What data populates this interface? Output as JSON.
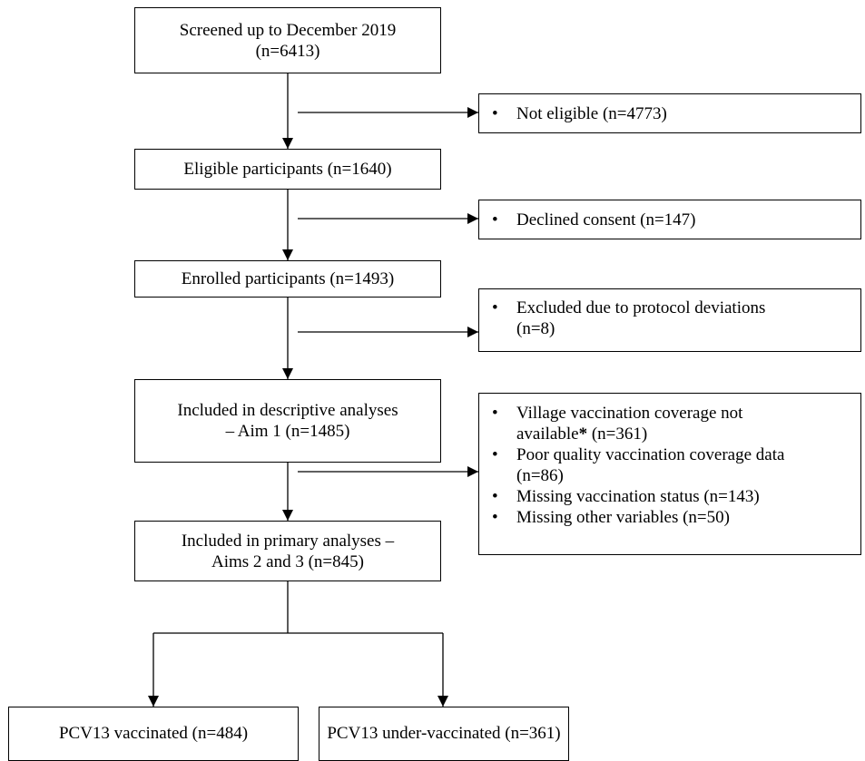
{
  "flow": {
    "screened": {
      "line1": "Screened up to December 2019",
      "line2": "(n=6413)"
    },
    "eligible": {
      "label": "Eligible participants (n=1640)"
    },
    "enrolled": {
      "label": "Enrolled participants (n=1493)"
    },
    "descriptive": {
      "line1": "Included in descriptive analyses",
      "line2": "– Aim 1 (n=1485)"
    },
    "primary": {
      "line1": "Included in primary analyses –",
      "line2": "Aims 2 and 3 (n=845)"
    },
    "vaccinated": {
      "label": "PCV13 vaccinated (n=484)"
    },
    "under_vaccinated": {
      "label": "PCV13 under-vaccinated (n=361)"
    }
  },
  "exclusions": {
    "not_eligible": {
      "label": "Not eligible (n=4773)"
    },
    "declined": {
      "label": "Declined consent (n=147)"
    },
    "protocol": {
      "line1": "Excluded due to protocol deviations",
      "line2": "(n=8)"
    },
    "analysis": {
      "village_line1": "Village vaccination coverage not",
      "village_line2a": "available",
      "village_star": "*",
      "village_line2b": " (n=361)",
      "poor_line1": "Poor quality vaccination coverage data",
      "poor_line2": "(n=86)",
      "missing_status": "Missing vaccination status (n=143)",
      "missing_other": "Missing other variables (n=50)"
    }
  }
}
